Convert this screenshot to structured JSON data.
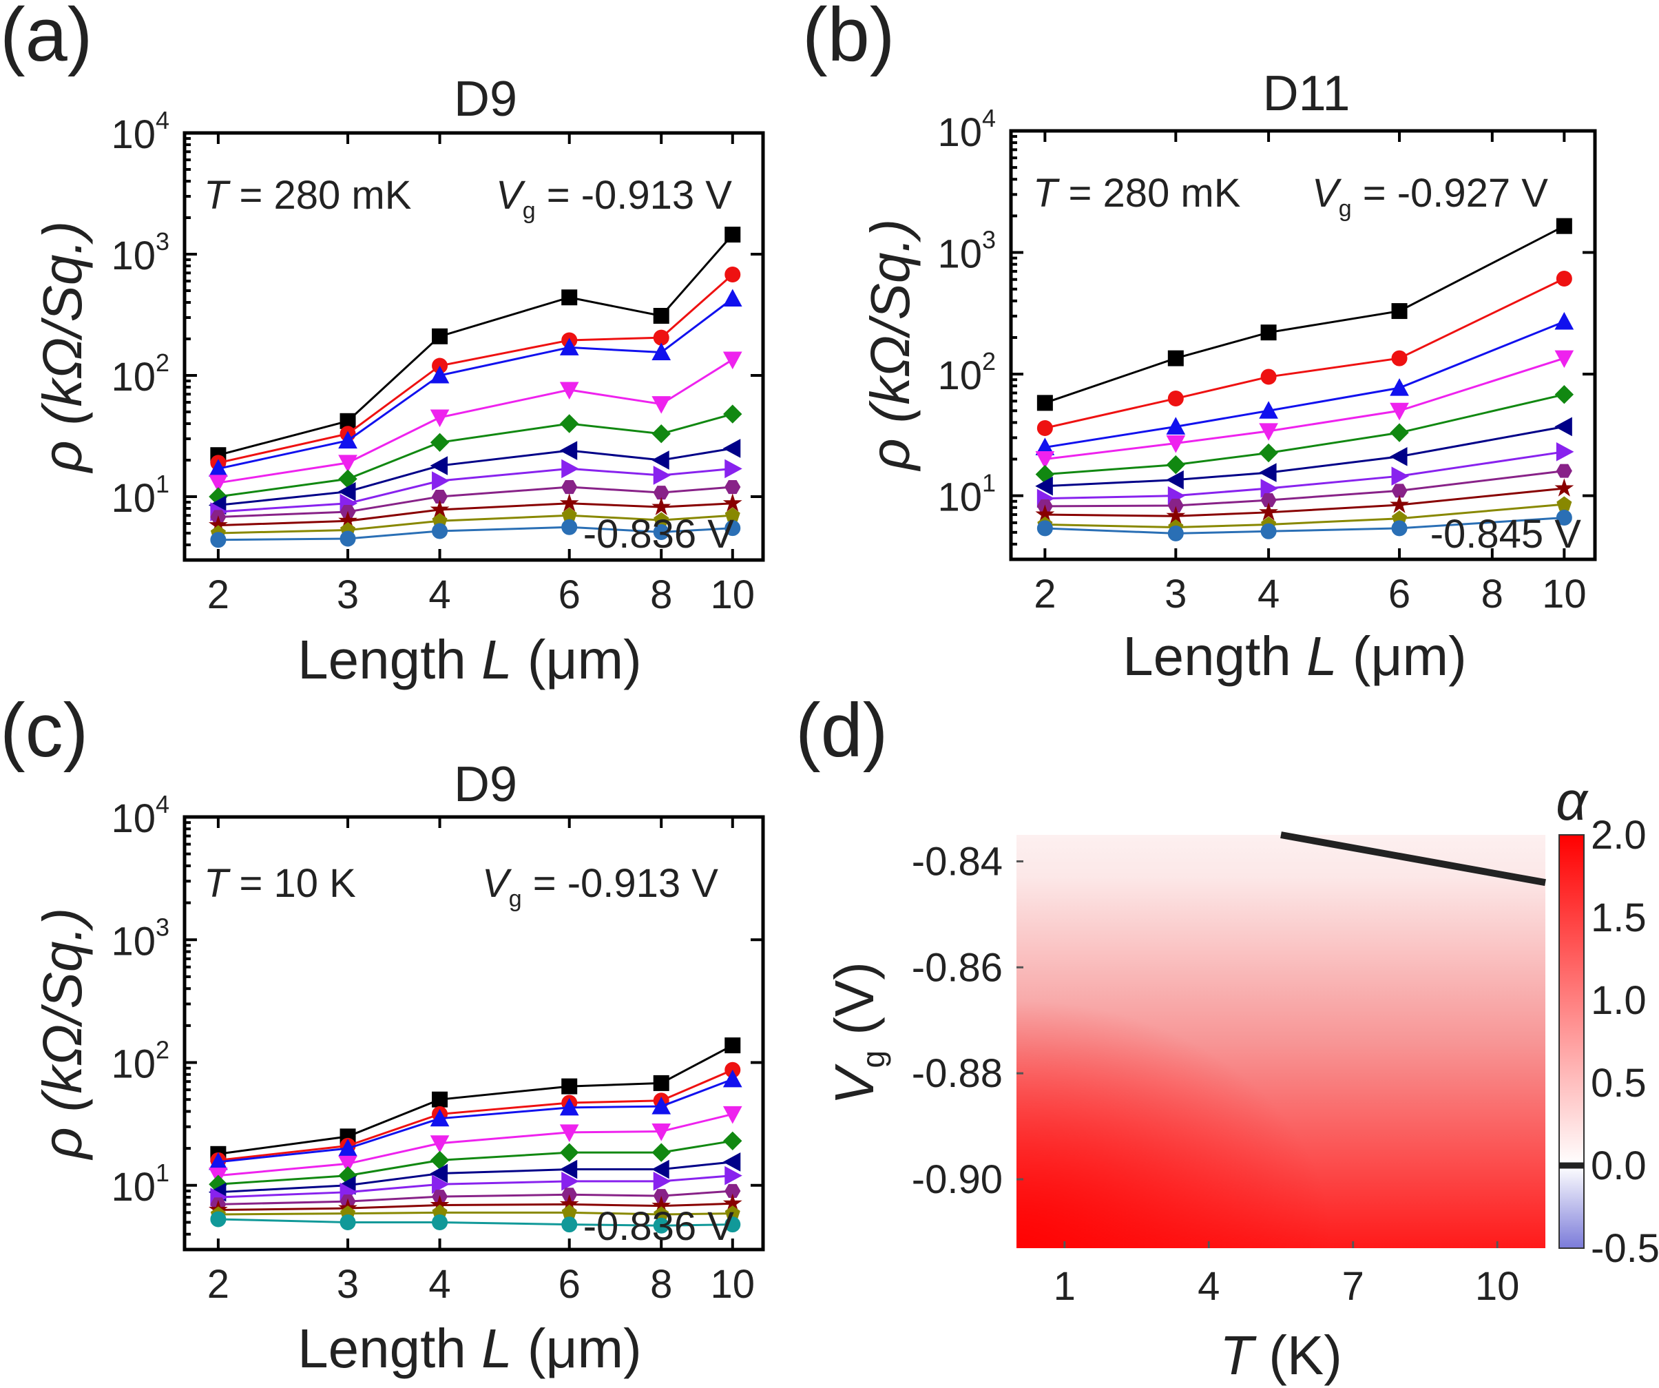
{
  "chart_data": [
    {
      "panel": "(a)",
      "title": "D9",
      "type": "line",
      "xscale": "log",
      "yscale": "log",
      "xlabel": "Length L (μm)",
      "ylabel": "ρ (kΩ/Sq.)",
      "xlim": [
        1.8,
        11
      ],
      "ylim": [
        3,
        10000
      ],
      "x": [
        2,
        3,
        4,
        6,
        8,
        10
      ],
      "x_ticks": [
        "2",
        "3",
        "4",
        "6",
        "8",
        "10"
      ],
      "y_ticks": [
        10,
        100,
        1000,
        10000
      ],
      "annotation_T_label": "T",
      "annotation_T_value": " = 280 mK",
      "annotation_Vg_label": "V",
      "annotation_Vg_sub": "g",
      "annotation_Vg_value": " = -0.913 V",
      "annotation_bottom": "-0.836 V",
      "series": [
        {
          "color": "#000000",
          "marker": "square",
          "values": [
            22,
            42,
            210,
            440,
            310,
            1450
          ]
        },
        {
          "color": "#ee1111",
          "marker": "circle",
          "values": [
            19,
            33,
            120,
            195,
            205,
            680
          ]
        },
        {
          "color": "#1111ee",
          "marker": "triangle-up",
          "values": [
            17,
            29,
            100,
            170,
            155,
            430
          ]
        },
        {
          "color": "#ee22ee",
          "marker": "triangle-down",
          "values": [
            13,
            19,
            45,
            76,
            58,
            135
          ]
        },
        {
          "color": "#118811",
          "marker": "diamond",
          "values": [
            10,
            14,
            28,
            40,
            33,
            48
          ]
        },
        {
          "color": "#000088",
          "marker": "triangle-left",
          "values": [
            8.5,
            11,
            18,
            24,
            20,
            25
          ]
        },
        {
          "color": "#8822ee",
          "marker": "triangle-right",
          "values": [
            7.5,
            8.8,
            13.5,
            17,
            15,
            17
          ]
        },
        {
          "color": "#882288",
          "marker": "hexagon",
          "values": [
            6.8,
            7.5,
            10,
            12,
            10.8,
            12
          ]
        },
        {
          "color": "#880000",
          "marker": "star",
          "values": [
            5.8,
            6.3,
            7.8,
            8.8,
            8.2,
            8.8
          ]
        },
        {
          "color": "#888800",
          "marker": "pentagon",
          "values": [
            5.0,
            5.3,
            6.3,
            7.0,
            6.4,
            7.0
          ]
        },
        {
          "color": "#2a6fb5",
          "marker": "circle",
          "values": [
            4.4,
            4.5,
            5.2,
            5.6,
            5.1,
            5.5
          ]
        }
      ]
    },
    {
      "panel": "(b)",
      "title": "D11",
      "type": "line",
      "xscale": "log",
      "yscale": "log",
      "xlabel": "Length L (μm)",
      "ylabel": "ρ (kΩ/Sq.)",
      "xlim": [
        1.8,
        11
      ],
      "ylim": [
        3,
        10000
      ],
      "x": [
        2,
        3,
        4,
        6,
        10
      ],
      "x_ticks": [
        "2",
        "3",
        "4",
        "6",
        "8",
        "10"
      ],
      "y_ticks": [
        10,
        100,
        1000,
        10000
      ],
      "annotation_T_label": "T",
      "annotation_T_value": " = 280 mK",
      "annotation_Vg_label": "V",
      "annotation_Vg_sub": "g",
      "annotation_Vg_value": " = -0.927 V",
      "annotation_bottom": "-0.845 V",
      "series": [
        {
          "color": "#000000",
          "marker": "square",
          "values": [
            58,
            135,
            220,
            330,
            1650
          ]
        },
        {
          "color": "#ee1111",
          "marker": "circle",
          "values": [
            36,
            63,
            95,
            135,
            610
          ]
        },
        {
          "color": "#1111ee",
          "marker": "triangle-up",
          "values": [
            25,
            37,
            50,
            77,
            270
          ]
        },
        {
          "color": "#ee22ee",
          "marker": "triangle-down",
          "values": [
            20,
            27,
            34,
            50,
            135
          ]
        },
        {
          "color": "#118811",
          "marker": "diamond",
          "values": [
            15,
            18,
            22.5,
            33,
            68
          ]
        },
        {
          "color": "#000088",
          "marker": "triangle-left",
          "values": [
            12,
            13.5,
            15.5,
            21,
            37
          ]
        },
        {
          "color": "#8822ee",
          "marker": "triangle-right",
          "values": [
            9.5,
            10,
            11.5,
            14.5,
            23
          ]
        },
        {
          "color": "#882288",
          "marker": "hexagon",
          "values": [
            8.2,
            8.3,
            9.2,
            11,
            16
          ]
        },
        {
          "color": "#880000",
          "marker": "star",
          "values": [
            7.0,
            6.8,
            7.3,
            8.4,
            11.5
          ]
        },
        {
          "color": "#888800",
          "marker": "pentagon",
          "values": [
            5.8,
            5.5,
            5.8,
            6.5,
            8.5
          ]
        },
        {
          "color": "#2a6fb5",
          "marker": "circle",
          "values": [
            5.4,
            4.9,
            5.1,
            5.4,
            6.6
          ]
        }
      ]
    },
    {
      "panel": "(c)",
      "title": "D9",
      "type": "line",
      "xscale": "log",
      "yscale": "log",
      "xlabel": "Length L (μm)",
      "ylabel": "ρ (kΩ/Sq.)",
      "xlim": [
        1.8,
        11
      ],
      "ylim": [
        3,
        10000
      ],
      "x": [
        2,
        3,
        4,
        6,
        8,
        10
      ],
      "x_ticks": [
        "2",
        "3",
        "4",
        "6",
        "8",
        "10"
      ],
      "y_ticks": [
        10,
        100,
        1000,
        10000
      ],
      "annotation_T_label": "T",
      "annotation_T_value": " = 10 K",
      "annotation_Vg_label": "V",
      "annotation_Vg_sub": "g",
      "annotation_Vg_value": " = -0.913 V",
      "annotation_bottom": "-0.836 V",
      "series": [
        {
          "color": "#000000",
          "marker": "square",
          "values": [
            18,
            25,
            50,
            64,
            68,
            138
          ]
        },
        {
          "color": "#ee1111",
          "marker": "circle",
          "values": [
            16,
            21,
            38,
            47,
            49,
            87
          ]
        },
        {
          "color": "#1111ee",
          "marker": "triangle-up",
          "values": [
            15.5,
            20,
            35,
            43,
            44,
            73
          ]
        },
        {
          "color": "#ee22ee",
          "marker": "triangle-down",
          "values": [
            12,
            15,
            22,
            27,
            27.5,
            38
          ]
        },
        {
          "color": "#118811",
          "marker": "diamond",
          "values": [
            10.2,
            12,
            16,
            18.5,
            18.5,
            23
          ]
        },
        {
          "color": "#000088",
          "marker": "triangle-left",
          "values": [
            8.8,
            10,
            12.5,
            13.5,
            13.5,
            15.5
          ]
        },
        {
          "color": "#8822ee",
          "marker": "triangle-right",
          "values": [
            8.0,
            8.8,
            10.2,
            10.8,
            10.8,
            12
          ]
        },
        {
          "color": "#882288",
          "marker": "hexagon",
          "values": [
            7.0,
            7.4,
            8.1,
            8.4,
            8.2,
            9.0
          ]
        },
        {
          "color": "#880000",
          "marker": "star",
          "values": [
            6.3,
            6.5,
            6.9,
            7.0,
            6.8,
            7.1
          ]
        },
        {
          "color": "#888800",
          "marker": "pentagon",
          "values": [
            5.8,
            5.9,
            6.0,
            6.0,
            5.8,
            5.9
          ]
        },
        {
          "color": "#119999",
          "marker": "circle",
          "values": [
            5.3,
            5.0,
            5.0,
            4.8,
            4.7,
            4.8
          ]
        }
      ]
    },
    {
      "panel": "(d)",
      "type": "heatmap",
      "xlabel_var": "T",
      "xlabel_unit": " (K)",
      "ylabel_var": "V",
      "ylabel_sub": "g",
      "ylabel_unit": " (V)",
      "xlim": [
        0,
        11
      ],
      "ylim": [
        -0.913,
        -0.835
      ],
      "x_ticks": [
        "1",
        "4",
        "7",
        "10"
      ],
      "x_tick_values": [
        1,
        4,
        7,
        10
      ],
      "y_ticks": [
        "-0.84",
        "-0.86",
        "-0.88",
        "-0.90"
      ],
      "y_tick_values": [
        -0.84,
        -0.86,
        -0.88,
        -0.9
      ],
      "colorbar_label": "α",
      "colorbar_range": [
        -0.5,
        2.0
      ],
      "colorbar_ticks": [
        "2.0",
        "1.5",
        "1.0",
        "0.5",
        "0.0",
        "-0.5"
      ],
      "colorbar_tick_values": [
        2.0,
        1.5,
        1.0,
        0.5,
        0.0,
        -0.5
      ],
      "zero_contour_T": [
        5.5,
        11
      ],
      "zero_contour_Vg": [
        -0.835,
        -0.844
      ],
      "colormap": [
        "#7b7bd9",
        "#ffffff",
        "#ff0000"
      ]
    }
  ],
  "panel_labels": [
    "(a)",
    "(b)",
    "(c)",
    "(d)"
  ]
}
